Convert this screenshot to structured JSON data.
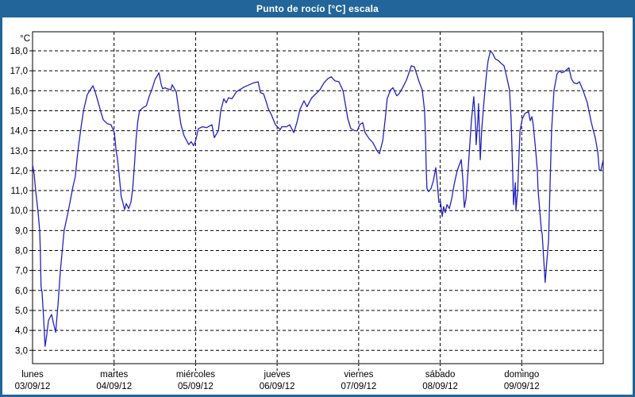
{
  "window": {
    "title": "Punto de rocío [°C] escala"
  },
  "colors": {
    "titlebar_bg": "#21659a",
    "titlebar_text": "#ffffff",
    "line": "#2222c0",
    "grid": "#000000",
    "plot_bg": "#ffffff"
  },
  "chart_data": {
    "type": "line",
    "title": "Punto de rocío [°C] escala",
    "ylabel": "°C",
    "ylim": [
      3.0,
      18.0
    ],
    "y_tick_step": 1.0,
    "y_tick_labels": [
      "18,0",
      "17,0",
      "16,0",
      "15,0",
      "14,0",
      "13,0",
      "12,0",
      "11,0",
      "10,0",
      "9,0",
      "8,0",
      "7,0",
      "6,0",
      "5,0",
      "4,0",
      "3,0"
    ],
    "x_days": [
      {
        "day": "lunes",
        "date": "03/09/12"
      },
      {
        "day": "martes",
        "date": "04/09/12"
      },
      {
        "day": "miércoles",
        "date": "05/09/12"
      },
      {
        "day": "jueves",
        "date": "06/09/12"
      },
      {
        "day": "viernes",
        "date": "07/09/12"
      },
      {
        "day": "sábado",
        "date": "08/09/12"
      },
      {
        "day": "domingo",
        "date": "09/09/12"
      }
    ],
    "x_unit": "hours_since_monday_00h",
    "x_range_hours": [
      0,
      168
    ],
    "grid": "dashed",
    "legend": "none",
    "series": [
      {
        "name": "Punto de rocío [°C]",
        "points": [
          [
            0,
            12.3
          ],
          [
            0.5,
            11.8
          ],
          [
            0.9,
            11
          ],
          [
            1.6,
            10
          ],
          [
            2.1,
            9
          ],
          [
            2.3,
            8
          ],
          [
            2.5,
            6.2
          ],
          [
            2.8,
            5.9
          ],
          [
            3.3,
            4.5
          ],
          [
            3.7,
            3.2
          ],
          [
            4.2,
            3.8
          ],
          [
            4.7,
            4.5
          ],
          [
            5.6,
            4.8
          ],
          [
            6.1,
            4.4
          ],
          [
            6.8,
            3.9
          ],
          [
            7.5,
            5.3
          ],
          [
            8.2,
            7
          ],
          [
            9.3,
            9
          ],
          [
            10.3,
            9.8
          ],
          [
            11,
            10.4
          ],
          [
            11.9,
            11.2
          ],
          [
            12.6,
            11.7
          ],
          [
            13.1,
            12.6
          ],
          [
            13.6,
            13.3
          ],
          [
            14.3,
            14.2
          ],
          [
            15,
            15
          ],
          [
            16.1,
            15.8
          ],
          [
            16.8,
            16
          ],
          [
            17.8,
            16.25
          ],
          [
            18.5,
            15.9
          ],
          [
            19.2,
            15.5
          ],
          [
            20.1,
            14.95
          ],
          [
            20.8,
            14.55
          ],
          [
            22,
            14.35
          ],
          [
            23.1,
            14.3
          ],
          [
            24.1,
            13.9
          ],
          [
            24.6,
            13
          ],
          [
            25,
            12.6
          ],
          [
            25.6,
            11.6
          ],
          [
            26.1,
            10.7
          ],
          [
            26.6,
            10.4
          ],
          [
            27.1,
            10.05
          ],
          [
            27.6,
            10.35
          ],
          [
            28.3,
            10.1
          ],
          [
            29,
            10.45
          ],
          [
            29.5,
            11.15
          ],
          [
            30,
            12.3
          ],
          [
            30.5,
            13.6
          ],
          [
            31,
            14.5
          ],
          [
            31.5,
            15
          ],
          [
            32.5,
            15.15
          ],
          [
            33.5,
            15.25
          ],
          [
            34.3,
            15.7
          ],
          [
            35.3,
            16.15
          ],
          [
            36,
            16.55
          ],
          [
            37.2,
            16.9
          ],
          [
            37.9,
            16.3
          ],
          [
            38.3,
            16.1
          ],
          [
            39,
            16.15
          ],
          [
            39.6,
            16.1
          ],
          [
            40.7,
            16.05
          ],
          [
            41.1,
            16.3
          ],
          [
            42.3,
            15.95
          ],
          [
            43,
            15.1
          ],
          [
            43.7,
            14.3
          ],
          [
            44.6,
            13.75
          ],
          [
            46,
            13.3
          ],
          [
            46.7,
            13.45
          ],
          [
            47.4,
            13.25
          ],
          [
            48,
            13.5
          ],
          [
            48.8,
            14.1
          ],
          [
            50,
            14.2
          ],
          [
            51.2,
            14.15
          ],
          [
            52.3,
            14.25
          ],
          [
            52.8,
            14.3
          ],
          [
            53.5,
            13.65
          ],
          [
            54.7,
            14
          ],
          [
            55.4,
            15
          ],
          [
            56.3,
            15.6
          ],
          [
            57,
            15.4
          ],
          [
            57.7,
            15.65
          ],
          [
            58.7,
            15.6
          ],
          [
            60,
            15.95
          ],
          [
            62.4,
            16.2
          ],
          [
            65.2,
            16.4
          ],
          [
            66.4,
            16.45
          ],
          [
            67.1,
            15.9
          ],
          [
            68,
            15.85
          ],
          [
            68.7,
            15.5
          ],
          [
            69.4,
            15.1
          ],
          [
            70.3,
            14.8
          ],
          [
            71.5,
            14.3
          ],
          [
            72.9,
            14.05
          ],
          [
            73.4,
            14.2
          ],
          [
            74.8,
            14.2
          ],
          [
            75.7,
            14.3
          ],
          [
            76.9,
            13.9
          ],
          [
            77.8,
            14.4
          ],
          [
            78.7,
            15.05
          ],
          [
            79.9,
            15.5
          ],
          [
            80.8,
            15.2
          ],
          [
            82.2,
            15.65
          ],
          [
            83.4,
            15.85
          ],
          [
            84.6,
            16.05
          ],
          [
            85.8,
            16.4
          ],
          [
            86.9,
            16.6
          ],
          [
            87.9,
            16.7
          ],
          [
            89,
            16.5
          ],
          [
            90.2,
            16.45
          ],
          [
            91.4,
            16
          ],
          [
            92.1,
            15.3
          ],
          [
            92.8,
            14.6
          ],
          [
            93.7,
            14.1
          ],
          [
            94.9,
            14
          ],
          [
            95.6,
            14
          ],
          [
            96.3,
            14.3
          ],
          [
            97.2,
            14.4
          ],
          [
            97.9,
            13.9
          ],
          [
            99.1,
            13.6
          ],
          [
            100.2,
            13.4
          ],
          [
            101.4,
            13
          ],
          [
            102.1,
            12.85
          ],
          [
            103.1,
            13.5
          ],
          [
            103.8,
            14.55
          ],
          [
            104.4,
            15.6
          ],
          [
            105.4,
            16.05
          ],
          [
            106.1,
            16.15
          ],
          [
            107.2,
            15.75
          ],
          [
            107.9,
            15.85
          ],
          [
            109.1,
            16.2
          ],
          [
            110.1,
            16.55
          ],
          [
            111.5,
            17.25
          ],
          [
            112.4,
            17.2
          ],
          [
            113.8,
            16.45
          ],
          [
            114.7,
            16.05
          ],
          [
            115.4,
            15
          ],
          [
            115.7,
            13.5
          ],
          [
            115.9,
            12
          ],
          [
            116.1,
            11.1
          ],
          [
            116.6,
            10.95
          ],
          [
            117.3,
            11.1
          ],
          [
            118,
            11.5
          ],
          [
            118.7,
            12.15
          ],
          [
            119.2,
            11.3
          ],
          [
            119.6,
            10.4
          ],
          [
            120.1,
            10.45
          ],
          [
            120.6,
            9.7
          ],
          [
            121,
            10.2
          ],
          [
            121.5,
            9.9
          ],
          [
            122,
            10.3
          ],
          [
            122.7,
            10.1
          ],
          [
            123.4,
            10.6
          ],
          [
            124.1,
            11.3
          ],
          [
            125,
            12
          ],
          [
            126.2,
            12.55
          ],
          [
            126.7,
            11.5
          ],
          [
            127.1,
            10.15
          ],
          [
            127.6,
            10.6
          ],
          [
            128,
            11.5
          ],
          [
            128.7,
            13.25
          ],
          [
            129.2,
            14.5
          ],
          [
            129.9,
            15.7
          ],
          [
            130.4,
            14.3
          ],
          [
            130.6,
            13.3
          ],
          [
            131.1,
            14.6
          ],
          [
            131.3,
            15.35
          ],
          [
            131.8,
            12.55
          ],
          [
            132.2,
            14
          ],
          [
            132.9,
            15.5
          ],
          [
            133.6,
            16.8
          ],
          [
            134.1,
            17.5
          ],
          [
            134.8,
            18
          ],
          [
            135.5,
            17.85
          ],
          [
            136.2,
            17.6
          ],
          [
            137.2,
            17.5
          ],
          [
            138.1,
            17.35
          ],
          [
            138.8,
            17.25
          ],
          [
            139.5,
            16.75
          ],
          [
            140.4,
            16.05
          ],
          [
            140.9,
            14.5
          ],
          [
            141.4,
            11.5
          ],
          [
            141.6,
            10.3
          ],
          [
            142.1,
            11.4
          ],
          [
            142.3,
            10
          ],
          [
            142.8,
            11
          ],
          [
            143.5,
            14
          ],
          [
            144.2,
            14.6
          ],
          [
            144.9,
            14.85
          ],
          [
            145.3,
            14.9
          ],
          [
            146,
            14.95
          ],
          [
            146.5,
            14.5
          ],
          [
            147,
            14.7
          ],
          [
            147.4,
            14.3
          ],
          [
            148.1,
            13.05
          ],
          [
            148.6,
            12
          ],
          [
            148.8,
            11.1
          ],
          [
            149.3,
            10
          ],
          [
            149.8,
            9
          ],
          [
            150,
            8.85
          ],
          [
            150.5,
            7.5
          ],
          [
            150.9,
            6.4
          ],
          [
            151.4,
            7.5
          ],
          [
            151.9,
            8.5
          ],
          [
            152.3,
            11
          ],
          [
            152.8,
            14
          ],
          [
            153.5,
            16
          ],
          [
            154.4,
            16.85
          ],
          [
            155.1,
            17
          ],
          [
            155.8,
            16.9
          ],
          [
            156.5,
            16.95
          ],
          [
            157.2,
            17.05
          ],
          [
            157.9,
            17.15
          ],
          [
            158.6,
            16.6
          ],
          [
            159.3,
            16.4
          ],
          [
            160.3,
            16.35
          ],
          [
            161,
            16.45
          ],
          [
            162.1,
            16
          ],
          [
            163.3,
            15.4
          ],
          [
            164.5,
            14.4
          ],
          [
            165.7,
            13.6
          ],
          [
            166.4,
            12.9
          ],
          [
            166.8,
            12.05
          ],
          [
            167.3,
            12
          ],
          [
            168,
            12.55
          ]
        ]
      }
    ]
  }
}
